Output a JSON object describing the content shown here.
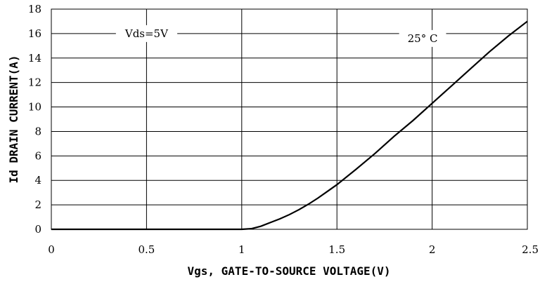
{
  "chart_data": {
    "type": "line",
    "xlabel": "Vgs, GATE-TO-SOURCE VOLTAGE(V)",
    "ylabel": "Id DRAIN CURRENT(A)",
    "xlim": [
      0,
      2.5
    ],
    "ylim": [
      0,
      18
    ],
    "x_ticks": [
      "0",
      "0.5",
      "1",
      "1.5",
      "2",
      "2.5"
    ],
    "y_ticks": [
      "0",
      "2",
      "4",
      "6",
      "8",
      "10",
      "12",
      "14",
      "16",
      "18"
    ],
    "grid": true,
    "annotations": [
      {
        "text": "Vds=5V",
        "x": 0.5,
        "y": 16
      },
      {
        "text": "25° C",
        "x": 1.95,
        "y": 15.6
      }
    ],
    "series": [
      {
        "x": [
          0,
          0.5,
          1.0,
          1.05,
          1.1,
          1.15,
          1.2,
          1.25,
          1.3,
          1.35,
          1.4,
          1.45,
          1.5,
          1.6,
          1.7,
          1.8,
          1.9,
          2.0,
          2.1,
          2.2,
          2.3,
          2.4,
          2.5
        ],
        "y": [
          0,
          0,
          0,
          0.05,
          0.25,
          0.55,
          0.85,
          1.2,
          1.6,
          2.05,
          2.55,
          3.1,
          3.65,
          4.9,
          6.2,
          7.6,
          8.9,
          10.3,
          11.7,
          13.1,
          14.5,
          15.8,
          17.0
        ]
      }
    ]
  }
}
